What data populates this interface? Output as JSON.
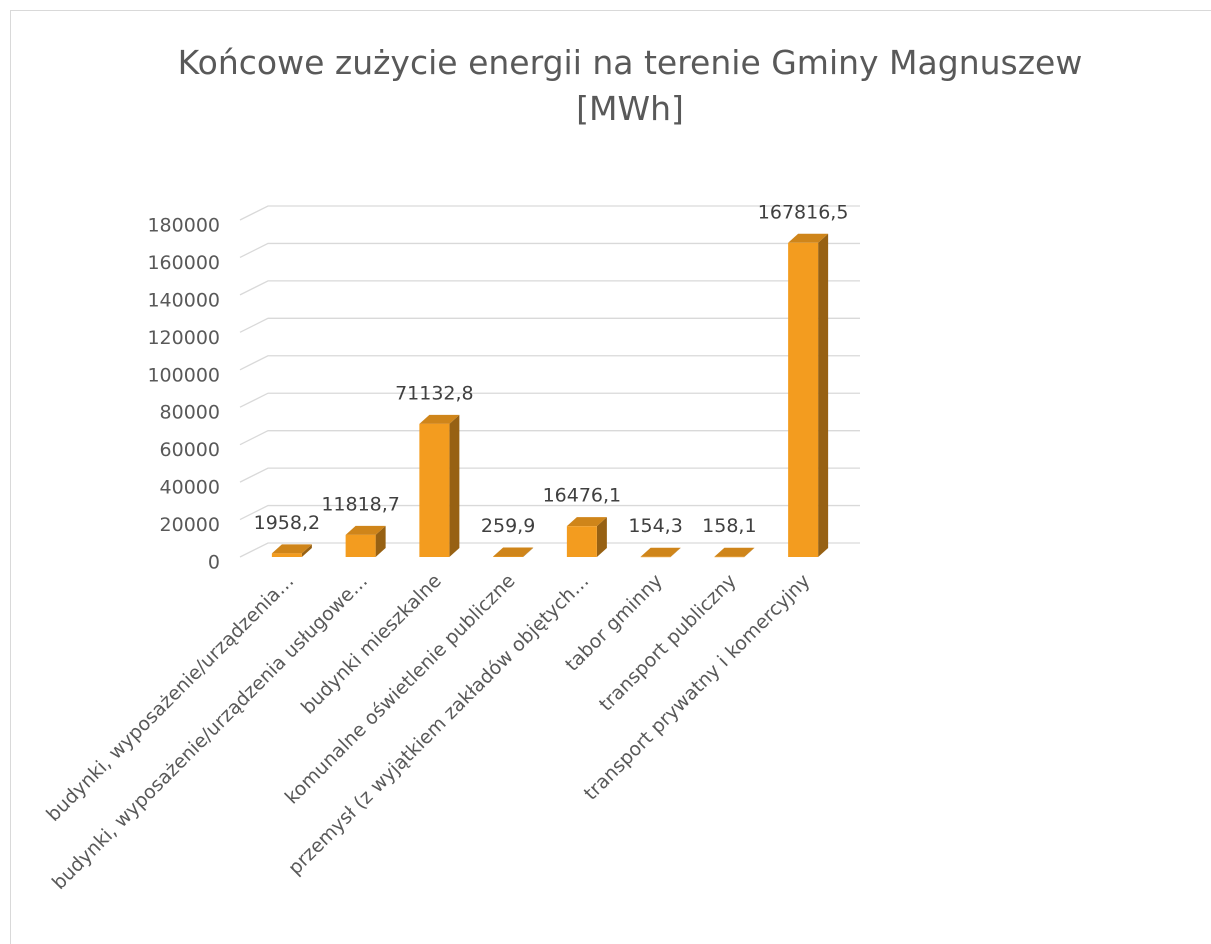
{
  "chart_data": {
    "type": "bar3d",
    "title": "Końcowe zużycie energii na terenie Gminy Magnuszew [MWh]",
    "categories": [
      "budynki, wyposażenie/urządzenia…",
      "budynki, wyposażenie/urządzenia usługowe…",
      "budynki mieszkalne",
      "komunalne oświetlenie publiczne",
      "przemysł (z wyjątkiem zakładów objętych…",
      "tabor gminny",
      "transport publiczny",
      "transport prywatny i komercyjny"
    ],
    "values": [
      1958.2,
      11818.7,
      71132.8,
      259.9,
      16476.1,
      154.3,
      158.1,
      167816.5
    ],
    "value_labels": [
      "1958,2",
      "11818,7",
      "71132,8",
      "259,9",
      "16476,1",
      "154,3",
      "158,1",
      "167816,5"
    ],
    "color": "#f39c1f",
    "ylim": [
      0,
      180000
    ],
    "yticks": [
      0,
      20000,
      40000,
      60000,
      80000,
      100000,
      120000,
      140000,
      160000,
      180000
    ],
    "grid": true
  }
}
